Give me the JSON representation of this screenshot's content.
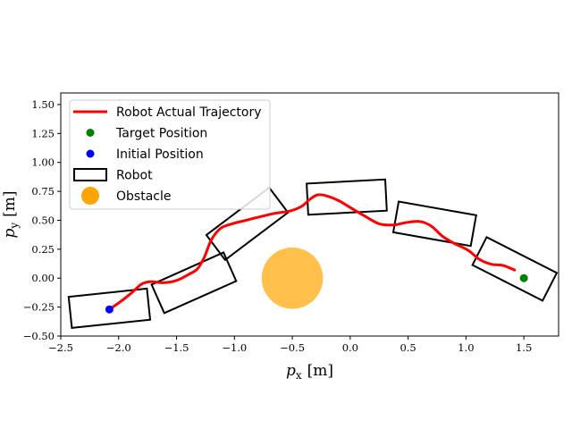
{
  "chart_data": {
    "type": "scatter",
    "title": "",
    "xlabel_var": "p",
    "xlabel_sub": "x",
    "xlabel_unit": "[m]",
    "ylabel_var": "p",
    "ylabel_sub": "y",
    "ylabel_unit": "[m]",
    "xlim": [
      -2.5,
      1.8
    ],
    "ylim": [
      -0.5,
      1.6
    ],
    "xticks": [
      -2.5,
      -2.0,
      -1.5,
      -1.0,
      -0.5,
      0.0,
      0.5,
      1.0,
      1.5
    ],
    "xtick_labels": [
      "−2.5",
      "−2.0",
      "−1.5",
      "−1.0",
      "−0.5",
      "0.0",
      "0.5",
      "1.0",
      "1.5"
    ],
    "yticks": [
      -0.5,
      -0.25,
      0.0,
      0.25,
      0.5,
      0.75,
      1.0,
      1.25,
      1.5
    ],
    "ytick_labels": [
      "−0.50",
      "−0.25",
      "0.00",
      "0.25",
      "0.50",
      "0.75",
      "1.00",
      "1.25",
      "1.50"
    ],
    "legend_position": "upper-left",
    "legend": [
      {
        "label": "Robot Actual Trajectory",
        "kind": "line",
        "color": "#ff0000"
      },
      {
        "label": "Target Position",
        "kind": "dot",
        "color": "#008000"
      },
      {
        "label": "Initial Position",
        "kind": "dot",
        "color": "#0000ff"
      },
      {
        "label": "Robot",
        "kind": "rect",
        "color": "#000000"
      },
      {
        "label": "Obstacle",
        "kind": "circle",
        "color": "#ffa500"
      }
    ],
    "trajectory": {
      "name": "Robot Actual Trajectory",
      "color": "#ff0000",
      "x": [
        -2.08,
        -1.98,
        -1.88,
        -1.8,
        -1.72,
        -1.62,
        -1.5,
        -1.4,
        -1.32,
        -1.26,
        -1.2,
        -1.12,
        -1.02,
        -0.9,
        -0.78,
        -0.65,
        -0.52,
        -0.42,
        -0.35,
        -0.28,
        -0.2,
        -0.1,
        0.0,
        0.12,
        0.25,
        0.38,
        0.48,
        0.6,
        0.7,
        0.8,
        0.9,
        1.02,
        1.12,
        1.22,
        1.32,
        1.42
      ],
      "y": [
        -0.27,
        -0.2,
        -0.12,
        -0.05,
        -0.03,
        -0.04,
        -0.02,
        0.03,
        0.08,
        0.18,
        0.33,
        0.43,
        0.47,
        0.5,
        0.53,
        0.56,
        0.58,
        0.62,
        0.68,
        0.72,
        0.71,
        0.67,
        0.61,
        0.54,
        0.47,
        0.46,
        0.48,
        0.49,
        0.45,
        0.36,
        0.3,
        0.24,
        0.16,
        0.12,
        0.11,
        0.07
      ]
    },
    "initial_position": {
      "x": -2.08,
      "y": -0.27,
      "color": "#0000ff"
    },
    "target_position": {
      "x": 1.5,
      "y": 0.0,
      "color": "#008000"
    },
    "obstacle": {
      "center_x": -0.5,
      "center_y": 0.0,
      "radius": 0.265,
      "color": "#ffa500",
      "alpha": 0.7
    },
    "robots": [
      {
        "center_x": -2.08,
        "center_y": -0.26,
        "length": 0.68,
        "width": 0.27,
        "angle_deg": 6
      },
      {
        "center_x": -1.35,
        "center_y": -0.04,
        "length": 0.68,
        "width": 0.27,
        "angle_deg": 24
      },
      {
        "center_x": -0.89,
        "center_y": 0.47,
        "length": 0.68,
        "width": 0.27,
        "angle_deg": 37
      },
      {
        "center_x": -0.03,
        "center_y": 0.7,
        "length": 0.68,
        "width": 0.27,
        "angle_deg": 3
      },
      {
        "center_x": 0.73,
        "center_y": 0.47,
        "length": 0.68,
        "width": 0.27,
        "angle_deg": -10
      },
      {
        "center_x": 1.42,
        "center_y": 0.08,
        "length": 0.68,
        "width": 0.27,
        "angle_deg": -27
      }
    ]
  }
}
